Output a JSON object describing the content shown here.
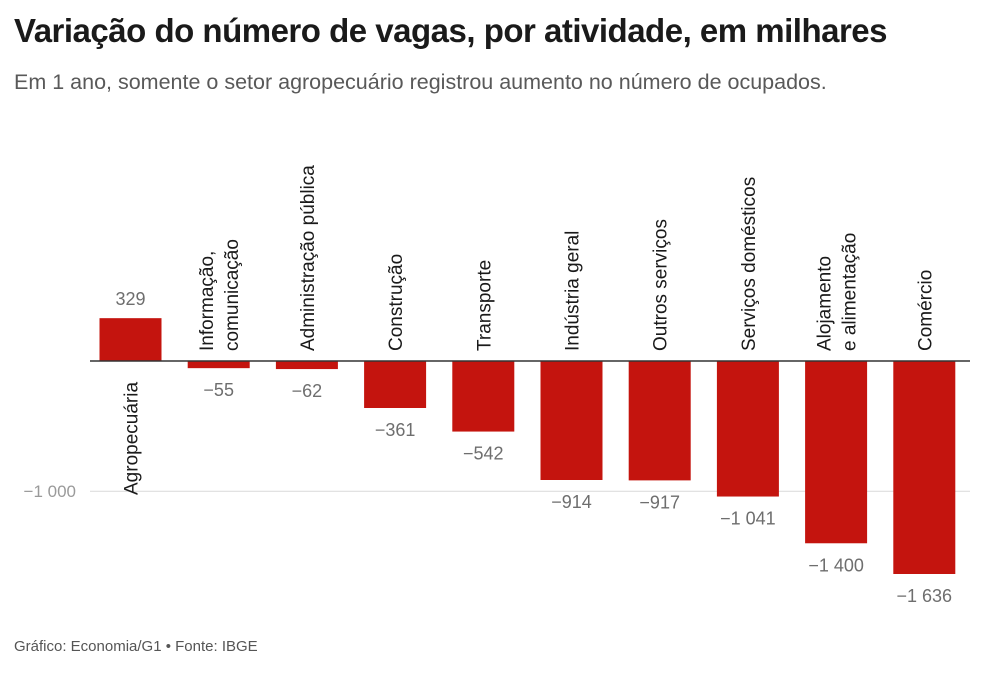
{
  "header": {
    "title": "Variação do número de vagas, por atividade, em milhares",
    "subtitle": "Em 1 ano, somente o setor agropecuário registrou aumento no número de ocupados."
  },
  "footer": {
    "source": "Gráfico: Economia/G1 • Fonte: IBGE"
  },
  "colors": {
    "bar": "#c4140e",
    "baseline": "#333333",
    "gridline": "#d9d9d9"
  },
  "chart_data": {
    "type": "bar",
    "title": "Variação do número de vagas, por atividade, em milhares",
    "categories": [
      [
        "Agropecuária"
      ],
      [
        "Informação,",
        "comunicação"
      ],
      [
        "Administração pública"
      ],
      [
        "Construção"
      ],
      [
        "Transporte"
      ],
      [
        "Indústria geral"
      ],
      [
        "Outros serviços"
      ],
      [
        "Serviços domésticos"
      ],
      [
        "Alojamento",
        "e alimentação"
      ],
      [
        "Comércio"
      ]
    ],
    "values": [
      329,
      -55,
      -62,
      -361,
      -542,
      -914,
      -917,
      -1041,
      -1400,
      -1636
    ],
    "value_labels": [
      "329",
      "−55",
      "−62",
      "−361",
      "−542",
      "−914",
      "−917",
      "−1 041",
      "−1 400",
      "−1 636"
    ],
    "yticks": [
      {
        "value": -1000,
        "label": "−1 000"
      }
    ],
    "ylim": [
      -1636,
      329
    ],
    "xlabel": "",
    "ylabel": "",
    "grid": true
  }
}
